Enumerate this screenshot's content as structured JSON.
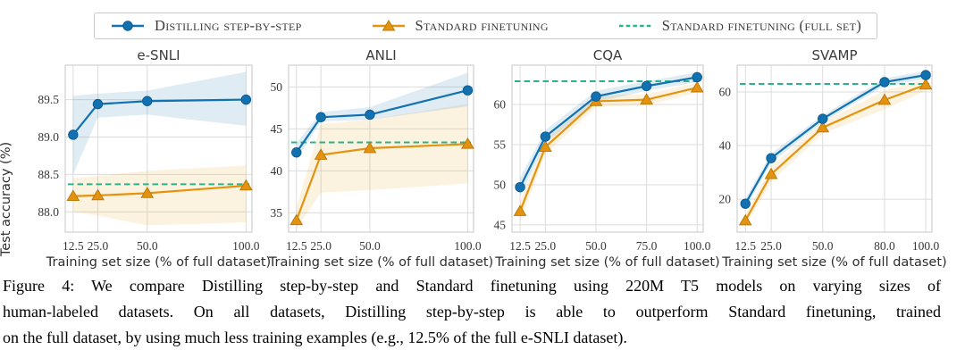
{
  "colors": {
    "blue": "#1272b1",
    "blue_edge": "#0d5b90",
    "orange": "#e3930f",
    "orange_edge": "#bd7a09",
    "green": "#2cb18a",
    "band_blue": "rgba(31,119,180,0.14)",
    "band_orange": "rgba(230,152,18,0.13)",
    "grid": "#dcdcdc",
    "spine": "#cfcfcf"
  },
  "legend": {
    "items": [
      {
        "label": "Distilling step-by-step",
        "marker": "circle-line",
        "color": "blue"
      },
      {
        "label": "Standard finetuning",
        "marker": "triangle-line",
        "color": "orange"
      },
      {
        "label": "Standard finetuning (full set)",
        "marker": "dashed-line",
        "color": "green"
      }
    ]
  },
  "shared": {
    "xlabel": "Training set size (% of full dataset)",
    "ylabel": "Test accuracy (%)"
  },
  "chart_data": [
    {
      "type": "line",
      "title": "e-SNLI",
      "x": [
        12.5,
        25,
        50,
        100
      ],
      "xticks": [
        12.5,
        25,
        50,
        100
      ],
      "xtick_labels": [
        "12.5",
        "25.0",
        "50.0",
        "100.0"
      ],
      "xlim": [
        8.5,
        103
      ],
      "ylim": [
        87.73,
        89.96
      ],
      "yticks": [
        88.0,
        88.5,
        89.0,
        89.5
      ],
      "ytick_labels": [
        "88.0",
        "88.5",
        "89.0",
        "89.5"
      ],
      "grid": true,
      "series": [
        {
          "name": "Standard finetuning",
          "marker": "triangle",
          "color": "orange",
          "edge": "orange_edge",
          "band_color": "band_orange",
          "values": [
            88.21,
            88.22,
            88.25,
            88.35
          ],
          "band_lower": [
            88.0,
            87.95,
            87.82,
            87.86
          ],
          "band_upper": [
            88.45,
            88.48,
            88.55,
            88.62
          ]
        },
        {
          "name": "Distilling step-by-step",
          "marker": "circle",
          "color": "blue",
          "edge": "blue_edge",
          "band_color": "band_blue",
          "values": [
            89.03,
            89.44,
            89.48,
            89.5
          ],
          "band_lower": [
            88.5,
            89.26,
            89.3,
            89.15
          ],
          "band_upper": [
            89.55,
            89.58,
            89.62,
            89.87
          ]
        }
      ],
      "baseline": {
        "name": "Standard finetuning (full set)",
        "value": 88.37
      }
    },
    {
      "type": "line",
      "title": "ANLI",
      "x": [
        12.5,
        25,
        50,
        100
      ],
      "xticks": [
        12.5,
        25,
        50,
        100
      ],
      "xtick_labels": [
        "12.5",
        "25.0",
        "50.0",
        "100.0"
      ],
      "xlim": [
        8.5,
        103
      ],
      "ylim": [
        32.7,
        52.6
      ],
      "yticks": [
        35,
        40,
        45,
        50
      ],
      "ytick_labels": [
        "35",
        "40",
        "45",
        "50"
      ],
      "grid": true,
      "series": [
        {
          "name": "Standard finetuning",
          "marker": "triangle",
          "color": "orange",
          "edge": "orange_edge",
          "band_color": "band_orange",
          "values": [
            34.1,
            41.9,
            42.7,
            43.2
          ],
          "band_lower": [
            33.1,
            37.4,
            37.7,
            38.5
          ],
          "band_upper": [
            35.6,
            45.6,
            46.1,
            48.0
          ]
        },
        {
          "name": "Distilling step-by-step",
          "marker": "circle",
          "color": "blue",
          "edge": "blue_edge",
          "band_color": "band_blue",
          "values": [
            42.2,
            46.4,
            46.7,
            49.6
          ],
          "band_lower": [
            41.3,
            45.9,
            46.1,
            47.7
          ],
          "band_upper": [
            43.3,
            47.0,
            47.6,
            51.7
          ]
        }
      ],
      "baseline": {
        "name": "Standard finetuning (full set)",
        "value": 43.4
      }
    },
    {
      "type": "line",
      "title": "CQA",
      "x": [
        12.5,
        25,
        50,
        75,
        100
      ],
      "xticks": [
        12.5,
        25,
        50,
        75,
        100
      ],
      "xtick_labels": [
        "12.5",
        "25.0",
        "50.0",
        "75.0",
        "100.0"
      ],
      "xlim": [
        8.5,
        103
      ],
      "ylim": [
        44.1,
        64.9
      ],
      "yticks": [
        45,
        50,
        55,
        60
      ],
      "ytick_labels": [
        "45",
        "50",
        "55",
        "60"
      ],
      "grid": true,
      "series": [
        {
          "name": "Standard finetuning",
          "marker": "triangle",
          "color": "orange",
          "edge": "orange_edge",
          "band_color": "band_orange",
          "values": [
            46.7,
            54.7,
            60.4,
            60.6,
            62.1
          ],
          "band_lower": [
            45.4,
            53.8,
            59.7,
            59.9,
            61.5
          ],
          "band_upper": [
            48.0,
            55.6,
            61.1,
            61.3,
            62.7
          ]
        },
        {
          "name": "Distilling step-by-step",
          "marker": "circle",
          "color": "blue",
          "edge": "blue_edge",
          "band_color": "band_blue",
          "values": [
            49.7,
            56.0,
            61.0,
            62.3,
            63.4
          ],
          "band_lower": [
            48.5,
            55.2,
            60.3,
            61.7,
            62.8
          ],
          "band_upper": [
            50.9,
            56.8,
            61.7,
            62.9,
            64.0
          ]
        }
      ],
      "baseline": {
        "name": "Standard finetuning (full set)",
        "value": 62.9
      }
    },
    {
      "type": "line",
      "title": "SVAMP",
      "x": [
        12.5,
        25,
        50,
        80,
        100
      ],
      "xticks": [
        12.5,
        25,
        50,
        80,
        100
      ],
      "xtick_labels": [
        "12.5",
        "25.0",
        "50.0",
        "80.0",
        "100.0"
      ],
      "xlim": [
        8.5,
        103
      ],
      "ylim": [
        7.7,
        70
      ],
      "yticks": [
        20,
        40,
        60
      ],
      "ytick_labels": [
        "20",
        "40",
        "60"
      ],
      "grid": true,
      "series": [
        {
          "name": "Standard finetuning",
          "marker": "triangle",
          "color": "orange",
          "edge": "orange_edge",
          "band_color": "band_orange",
          "values": [
            12.0,
            29.3,
            46.7,
            57.0,
            62.7
          ],
          "band_lower": [
            9.8,
            26.5,
            44.5,
            53.5,
            60.5
          ],
          "band_upper": [
            14.2,
            32.1,
            48.9,
            60.5,
            64.9
          ]
        },
        {
          "name": "Distilling step-by-step",
          "marker": "circle",
          "color": "blue",
          "edge": "blue_edge",
          "band_color": "band_blue",
          "values": [
            18.3,
            35.3,
            50.0,
            63.7,
            66.3
          ],
          "band_lower": [
            16.5,
            33.5,
            48.7,
            62.3,
            64.8
          ],
          "band_upper": [
            20.1,
            37.1,
            51.3,
            65.1,
            67.8
          ]
        }
      ],
      "baseline": {
        "name": "Standard finetuning (full set)",
        "value": 63.0
      }
    }
  ],
  "caption": {
    "lines": [
      "Figure 4: We compare Distilling step-by-step and Standard finetuning using 220M T5 models on varying sizes of",
      "human-labeled datasets. On all datasets, Distilling step-by-step is able to outperform Standard finetuning, trained",
      "on the full dataset, by using much less training examples (e.g., 12.5% of the full e-SNLI dataset)."
    ]
  }
}
